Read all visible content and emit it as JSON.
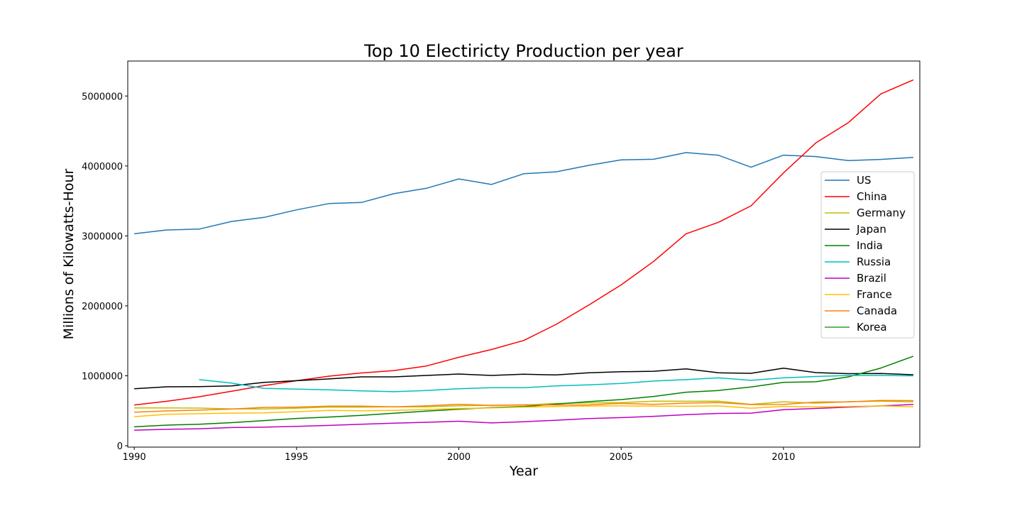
{
  "chart_data": {
    "type": "line",
    "title": "Top 10 Electiricty Production per year",
    "xlabel": "Year",
    "ylabel": "Millions of Kilowatts-Hour",
    "xlim": [
      1989.8,
      2014.2
    ],
    "ylim": [
      -20000,
      5500000
    ],
    "x_ticks": [
      1990,
      1995,
      2000,
      2005,
      2010
    ],
    "y_ticks": [
      0,
      1000000,
      2000000,
      3000000,
      4000000,
      5000000
    ],
    "y_tick_labels": [
      "0",
      "1000000",
      "2000000",
      "3000000",
      "4000000",
      "5000000"
    ],
    "grid": false,
    "legend_position": "center-right",
    "x": [
      1990,
      1991,
      1992,
      1993,
      1994,
      1995,
      1996,
      1997,
      1998,
      1999,
      2000,
      2001,
      2002,
      2003,
      2004,
      2005,
      2006,
      2007,
      2008,
      2009,
      2010,
      2011,
      2012,
      2013,
      2014
    ],
    "series": [
      {
        "name": "US",
        "color": "#1f77b4",
        "values": [
          3030000,
          3085000,
          3097000,
          3207000,
          3265000,
          3372000,
          3462000,
          3478000,
          3604000,
          3681000,
          3815000,
          3735000,
          3889000,
          3916000,
          4008000,
          4087000,
          4096000,
          4191000,
          4152000,
          3982000,
          4154000,
          4134000,
          4077000,
          4094000,
          4122000
        ]
      },
      {
        "name": "China",
        "color": "#ff0000",
        "values": [
          583000,
          635000,
          700000,
          780000,
          860000,
          930000,
          995000,
          1040000,
          1075000,
          1140000,
          1265000,
          1375000,
          1505000,
          1735000,
          2010000,
          2300000,
          2635000,
          3030000,
          3195000,
          3430000,
          3900000,
          4330000,
          4620000,
          5030000,
          5230000
        ]
      },
      {
        "name": "Germany",
        "color": "#bfbf00",
        "values": [
          540000,
          540000,
          538000,
          527000,
          526000,
          537000,
          553000,
          552000,
          557000,
          556000,
          572000,
          579000,
          582000,
          604000,
          613000,
          617000,
          637000,
          635000,
          637000,
          592000,
          628000,
          608000,
          629000,
          638000,
          626000
        ]
      },
      {
        "name": "Japan",
        "color": "#000000",
        "values": [
          815000,
          842000,
          845000,
          856000,
          905000,
          930000,
          955000,
          985000,
          985000,
          1005000,
          1025000,
          1005000,
          1022000,
          1012000,
          1042000,
          1058000,
          1065000,
          1098000,
          1042000,
          1035000,
          1108000,
          1045000,
          1030000,
          1032000,
          1015000
        ]
      },
      {
        "name": "India",
        "color": "#008000",
        "values": [
          270000,
          295000,
          308000,
          330000,
          360000,
          390000,
          410000,
          435000,
          465000,
          495000,
          522000,
          545000,
          560000,
          595000,
          630000,
          660000,
          705000,
          765000,
          790000,
          840000,
          905000,
          915000,
          985000,
          1110000,
          1280000
        ]
      },
      {
        "name": "Russia",
        "color": "#00bfbf",
        "values": [
          null,
          null,
          945000,
          895000,
          820000,
          810000,
          800000,
          785000,
          772000,
          790000,
          815000,
          830000,
          830000,
          855000,
          870000,
          890000,
          925000,
          945000,
          970000,
          935000,
          970000,
          990000,
          1005000,
          1005000,
          1000000
        ]
      },
      {
        "name": "Brazil",
        "color": "#bf00bf",
        "values": [
          223000,
          235000,
          243000,
          260000,
          265000,
          276000,
          290000,
          308000,
          322000,
          335000,
          350000,
          326000,
          343000,
          365000,
          388000,
          402000,
          420000,
          445000,
          462000,
          466000,
          516000,
          533000,
          552000,
          570000,
          590000
        ]
      },
      {
        "name": "France",
        "color": "#ffbf00",
        "values": [
          415000,
          450000,
          458000,
          466000,
          470000,
          486000,
          506000,
          500000,
          506000,
          518000,
          532000,
          541000,
          552000,
          560000,
          568000,
          570000,
          567000,
          564000,
          570000,
          537000,
          562000,
          556000,
          561000,
          570000,
          556000
        ]
      },
      {
        "name": "Canada",
        "color": "#ff7f0e",
        "values": [
          480000,
          497000,
          509000,
          524000,
          548000,
          552000,
          566000,
          566000,
          555000,
          570000,
          593000,
          576000,
          585000,
          583000,
          584000,
          605000,
          592000,
          609000,
          616000,
          589000,
          590000,
          624000,
          626000,
          648000,
          645000
        ]
      },
      {
        "name": "Korea",
        "color": "#2ca02c",
        "values": [
          null,
          null,
          null,
          null,
          null,
          null,
          null,
          null,
          null,
          null,
          null,
          null,
          null,
          null,
          null,
          null,
          null,
          null,
          null,
          null,
          null,
          null,
          null,
          null,
          null
        ]
      }
    ]
  }
}
